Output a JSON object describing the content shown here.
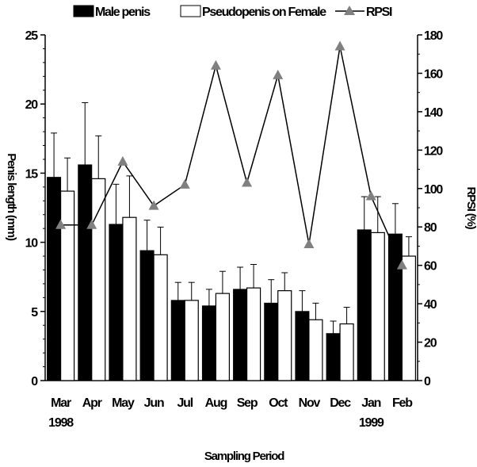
{
  "chart_data": {
    "type": "bar",
    "title": "",
    "xlabel": "Sampling Period",
    "ylabel": "Penis length (mm)",
    "y2label": "RPSI (%)",
    "ylim": [
      0,
      25
    ],
    "y2lim": [
      0,
      180
    ],
    "yticks": [
      "0",
      "5",
      "10",
      "15",
      "20",
      "25"
    ],
    "y2ticks": [
      "0",
      "20",
      "40",
      "60",
      "80",
      "100",
      "120",
      "140",
      "160",
      "180"
    ],
    "categories": [
      "Mar",
      "Apr",
      "May",
      "Jun",
      "Jul",
      "Aug",
      "Sep",
      "Oct",
      "Nov",
      "Dec",
      "Jan",
      "Feb"
    ],
    "year_labels": [
      "1998",
      "",
      "",
      "",
      "",
      "",
      "",
      "",
      "",
      "",
      "1999",
      ""
    ],
    "legend_position": "top",
    "grid": false,
    "series": [
      {
        "name": "Male penis",
        "kind": "bar",
        "color": "#000000",
        "values": [
          14.7,
          15.6,
          11.3,
          9.4,
          5.8,
          5.4,
          6.6,
          5.6,
          5.0,
          3.4,
          10.9,
          10.6
        ],
        "errors": [
          3.2,
          4.5,
          2.9,
          2.2,
          1.3,
          1.2,
          1.6,
          1.7,
          1.5,
          0.9,
          2.4,
          2.2
        ]
      },
      {
        "name": "Pseudopenis on Female",
        "kind": "bar",
        "color": "#ffffff",
        "values": [
          13.7,
          14.6,
          11.8,
          9.1,
          5.8,
          6.3,
          6.7,
          6.5,
          4.4,
          4.1,
          10.7,
          9.0
        ],
        "errors": [
          2.4,
          3.1,
          3.0,
          2.0,
          1.3,
          1.6,
          1.7,
          1.3,
          1.2,
          1.2,
          2.6,
          1.4
        ]
      },
      {
        "name": "RPSI",
        "kind": "line",
        "axis": "right",
        "color": "#808080",
        "values": [
          81,
          81,
          114,
          91,
          102,
          164,
          103,
          159,
          71,
          174,
          96,
          60
        ]
      }
    ]
  }
}
